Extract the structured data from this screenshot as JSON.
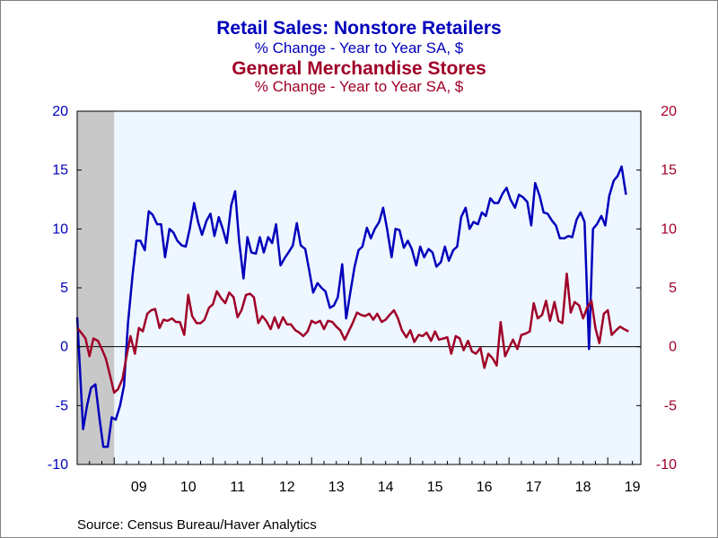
{
  "colors": {
    "series1": "#0000BB",
    "series2": "#A00028",
    "background": "#EEF6FF",
    "recession": "#C8C8C8",
    "left_axis_text": "#0000BB",
    "right_axis_text": "#A00028"
  },
  "header": {
    "series1_title": "Retail Sales: Nonstore Retailers",
    "series1_subtitle": "% Change - Year to Year    SA, $",
    "series2_title": "General Merchandise Stores",
    "series2_subtitle": "% Change - Year to Year    SA, $"
  },
  "footer": {
    "source": "Source:  Census Bureau/Haver Analytics"
  },
  "chart_data": {
    "type": "line",
    "x_unit": "year (decimal)",
    "xlim": [
      2008.25,
      2019.67
    ],
    "x_ticks": [
      {
        "label": "09",
        "x": 2009.5
      },
      {
        "label": "10",
        "x": 2010.5
      },
      {
        "label": "11",
        "x": 2011.5
      },
      {
        "label": "12",
        "x": 2012.5
      },
      {
        "label": "13",
        "x": 2013.5
      },
      {
        "label": "14",
        "x": 2014.5
      },
      {
        "label": "15",
        "x": 2015.5
      },
      {
        "label": "16",
        "x": 2016.5
      },
      {
        "label": "17",
        "x": 2017.5
      },
      {
        "label": "18",
        "x": 2018.5
      },
      {
        "label": "19",
        "x": 2019.5
      }
    ],
    "ylim_left": [
      -10,
      20
    ],
    "ylim_right": [
      -10,
      20
    ],
    "y_ticks_left": [
      -10,
      -5,
      0,
      5,
      10,
      15,
      20
    ],
    "y_ticks_right": [
      -10,
      -5,
      0,
      5,
      10,
      15,
      20
    ],
    "recession": {
      "start": 2008.25,
      "end": 2009.0
    },
    "zero_line": 0,
    "series": [
      {
        "name": "Retail Sales: Nonstore Retailers",
        "axis": "left",
        "points": [
          [
            2008.25,
            2.5
          ],
          [
            2008.37,
            -7.0
          ],
          [
            2008.45,
            -5.0
          ],
          [
            2008.53,
            -3.5
          ],
          [
            2008.62,
            -3.2
          ],
          [
            2008.7,
            -6.0
          ],
          [
            2008.78,
            -8.5
          ],
          [
            2008.87,
            -8.5
          ],
          [
            2008.95,
            -6.0
          ],
          [
            2009.03,
            -6.2
          ],
          [
            2009.12,
            -5.0
          ],
          [
            2009.2,
            -3.3
          ],
          [
            2009.28,
            2.0
          ],
          [
            2009.37,
            6.0
          ],
          [
            2009.45,
            9.0
          ],
          [
            2009.53,
            9.0
          ],
          [
            2009.62,
            8.2
          ],
          [
            2009.7,
            11.5
          ],
          [
            2009.78,
            11.2
          ],
          [
            2009.87,
            10.4
          ],
          [
            2009.95,
            10.4
          ],
          [
            2010.03,
            7.6
          ],
          [
            2010.12,
            10.0
          ],
          [
            2010.2,
            9.7
          ],
          [
            2010.28,
            9.0
          ],
          [
            2010.37,
            8.6
          ],
          [
            2010.45,
            8.5
          ],
          [
            2010.53,
            10.0
          ],
          [
            2010.62,
            12.2
          ],
          [
            2010.7,
            10.6
          ],
          [
            2010.78,
            9.5
          ],
          [
            2010.87,
            10.7
          ],
          [
            2010.95,
            11.3
          ],
          [
            2011.03,
            9.4
          ],
          [
            2011.12,
            11.0
          ],
          [
            2011.2,
            10.0
          ],
          [
            2011.28,
            8.8
          ],
          [
            2011.37,
            12.0
          ],
          [
            2011.45,
            13.2
          ],
          [
            2011.53,
            9.0
          ],
          [
            2011.62,
            5.8
          ],
          [
            2011.7,
            9.3
          ],
          [
            2011.78,
            8.0
          ],
          [
            2011.87,
            7.9
          ],
          [
            2011.95,
            9.3
          ],
          [
            2012.03,
            8.0
          ],
          [
            2012.12,
            9.3
          ],
          [
            2012.2,
            8.8
          ],
          [
            2012.28,
            10.4
          ],
          [
            2012.37,
            6.9
          ],
          [
            2012.45,
            7.5
          ],
          [
            2012.53,
            8.0
          ],
          [
            2012.62,
            8.6
          ],
          [
            2012.7,
            10.5
          ],
          [
            2012.78,
            8.6
          ],
          [
            2012.87,
            8.3
          ],
          [
            2012.95,
            6.5
          ],
          [
            2013.03,
            4.6
          ],
          [
            2013.12,
            5.4
          ],
          [
            2013.2,
            5.0
          ],
          [
            2013.28,
            4.7
          ],
          [
            2013.37,
            3.3
          ],
          [
            2013.45,
            3.5
          ],
          [
            2013.53,
            4.2
          ],
          [
            2013.62,
            7.0
          ],
          [
            2013.7,
            2.4
          ],
          [
            2013.78,
            4.5
          ],
          [
            2013.87,
            6.8
          ],
          [
            2013.95,
            8.2
          ],
          [
            2014.03,
            8.5
          ],
          [
            2014.12,
            10.1
          ],
          [
            2014.2,
            9.2
          ],
          [
            2014.28,
            10.0
          ],
          [
            2014.37,
            10.6
          ],
          [
            2014.45,
            11.8
          ],
          [
            2014.53,
            10.0
          ],
          [
            2014.62,
            7.6
          ],
          [
            2014.7,
            10.0
          ],
          [
            2014.78,
            9.9
          ],
          [
            2014.87,
            8.4
          ],
          [
            2014.95,
            9.0
          ],
          [
            2015.03,
            8.3
          ],
          [
            2015.12,
            6.9
          ],
          [
            2015.2,
            8.5
          ],
          [
            2015.28,
            7.6
          ],
          [
            2015.37,
            8.3
          ],
          [
            2015.45,
            8.0
          ],
          [
            2015.53,
            6.8
          ],
          [
            2015.62,
            7.2
          ],
          [
            2015.7,
            8.5
          ],
          [
            2015.78,
            7.3
          ],
          [
            2015.87,
            8.2
          ],
          [
            2015.95,
            8.5
          ],
          [
            2016.03,
            11.0
          ],
          [
            2016.12,
            11.8
          ],
          [
            2016.2,
            10.0
          ],
          [
            2016.28,
            10.6
          ],
          [
            2016.37,
            10.4
          ],
          [
            2016.45,
            11.4
          ],
          [
            2016.53,
            11.1
          ],
          [
            2016.62,
            12.6
          ],
          [
            2016.7,
            12.2
          ],
          [
            2016.78,
            12.2
          ],
          [
            2016.87,
            13.0
          ],
          [
            2016.95,
            13.5
          ],
          [
            2017.03,
            12.5
          ],
          [
            2017.12,
            11.8
          ],
          [
            2017.2,
            12.9
          ],
          [
            2017.28,
            12.7
          ],
          [
            2017.37,
            12.3
          ],
          [
            2017.45,
            10.3
          ],
          [
            2017.53,
            13.9
          ],
          [
            2017.62,
            12.8
          ],
          [
            2017.7,
            11.4
          ],
          [
            2017.78,
            11.3
          ],
          [
            2017.87,
            10.7
          ],
          [
            2017.95,
            10.3
          ],
          [
            2018.03,
            9.2
          ],
          [
            2018.12,
            9.2
          ],
          [
            2018.2,
            9.4
          ],
          [
            2018.28,
            9.3
          ],
          [
            2018.37,
            10.8
          ],
          [
            2018.45,
            11.4
          ],
          [
            2018.53,
            10.6
          ],
          [
            2018.62,
            -0.2
          ],
          [
            2018.7,
            10.0
          ],
          [
            2018.78,
            10.4
          ],
          [
            2018.87,
            11.1
          ],
          [
            2018.95,
            10.3
          ],
          [
            2019.03,
            12.8
          ],
          [
            2019.12,
            14.1
          ],
          [
            2019.2,
            14.5
          ],
          [
            2019.28,
            15.3
          ],
          [
            2019.37,
            12.9
          ]
        ]
      },
      {
        "name": "General Merchandise Stores",
        "axis": "right",
        "points": [
          [
            2008.25,
            1.6
          ],
          [
            2008.33,
            1.2
          ],
          [
            2008.42,
            0.7
          ],
          [
            2008.5,
            -0.8
          ],
          [
            2008.58,
            0.7
          ],
          [
            2008.67,
            0.5
          ],
          [
            2008.75,
            -0.2
          ],
          [
            2008.83,
            -1.0
          ],
          [
            2008.92,
            -2.5
          ],
          [
            2009.0,
            -3.9
          ],
          [
            2009.08,
            -3.6
          ],
          [
            2009.17,
            -2.7
          ],
          [
            2009.25,
            -0.8
          ],
          [
            2009.33,
            0.9
          ],
          [
            2009.42,
            -0.6
          ],
          [
            2009.5,
            1.6
          ],
          [
            2009.58,
            1.3
          ],
          [
            2009.67,
            2.8
          ],
          [
            2009.75,
            3.1
          ],
          [
            2009.83,
            3.2
          ],
          [
            2009.92,
            1.6
          ],
          [
            2010.0,
            2.3
          ],
          [
            2010.08,
            2.2
          ],
          [
            2010.17,
            2.4
          ],
          [
            2010.25,
            2.1
          ],
          [
            2010.33,
            2.1
          ],
          [
            2010.42,
            1.0
          ],
          [
            2010.5,
            4.4
          ],
          [
            2010.58,
            2.6
          ],
          [
            2010.67,
            2.0
          ],
          [
            2010.75,
            2.0
          ],
          [
            2010.83,
            2.3
          ],
          [
            2010.92,
            3.3
          ],
          [
            2011.0,
            3.6
          ],
          [
            2011.08,
            4.7
          ],
          [
            2011.17,
            4.1
          ],
          [
            2011.25,
            3.7
          ],
          [
            2011.33,
            4.6
          ],
          [
            2011.42,
            4.2
          ],
          [
            2011.5,
            2.5
          ],
          [
            2011.58,
            3.1
          ],
          [
            2011.67,
            4.4
          ],
          [
            2011.75,
            4.5
          ],
          [
            2011.83,
            4.2
          ],
          [
            2011.92,
            2.0
          ],
          [
            2012.0,
            2.6
          ],
          [
            2012.08,
            2.2
          ],
          [
            2012.17,
            1.5
          ],
          [
            2012.25,
            2.5
          ],
          [
            2012.33,
            1.6
          ],
          [
            2012.42,
            2.5
          ],
          [
            2012.5,
            1.9
          ],
          [
            2012.58,
            1.9
          ],
          [
            2012.67,
            1.4
          ],
          [
            2012.75,
            1.2
          ],
          [
            2012.83,
            0.9
          ],
          [
            2012.92,
            1.3
          ],
          [
            2013.0,
            2.2
          ],
          [
            2013.08,
            2.0
          ],
          [
            2013.17,
            2.2
          ],
          [
            2013.25,
            1.5
          ],
          [
            2013.33,
            2.2
          ],
          [
            2013.42,
            2.1
          ],
          [
            2013.5,
            1.7
          ],
          [
            2013.58,
            1.4
          ],
          [
            2013.67,
            0.6
          ],
          [
            2013.75,
            1.3
          ],
          [
            2013.83,
            2.0
          ],
          [
            2013.92,
            2.9
          ],
          [
            2014.0,
            2.7
          ],
          [
            2014.08,
            2.6
          ],
          [
            2014.17,
            2.8
          ],
          [
            2014.25,
            2.3
          ],
          [
            2014.33,
            2.8
          ],
          [
            2014.42,
            2.1
          ],
          [
            2014.5,
            2.3
          ],
          [
            2014.58,
            2.7
          ],
          [
            2014.67,
            3.1
          ],
          [
            2014.75,
            2.4
          ],
          [
            2014.83,
            1.4
          ],
          [
            2014.92,
            0.8
          ],
          [
            2015.0,
            1.4
          ],
          [
            2015.08,
            0.4
          ],
          [
            2015.17,
            1.0
          ],
          [
            2015.25,
            0.9
          ],
          [
            2015.33,
            1.2
          ],
          [
            2015.42,
            0.5
          ],
          [
            2015.5,
            1.3
          ],
          [
            2015.58,
            0.6
          ],
          [
            2015.67,
            0.7
          ],
          [
            2015.75,
            0.8
          ],
          [
            2015.83,
            -0.6
          ],
          [
            2015.92,
            0.9
          ],
          [
            2016.0,
            0.7
          ],
          [
            2016.08,
            -0.3
          ],
          [
            2016.17,
            0.5
          ],
          [
            2016.25,
            -0.4
          ],
          [
            2016.33,
            -0.6
          ],
          [
            2016.42,
            -0.1
          ],
          [
            2016.5,
            -1.8
          ],
          [
            2016.58,
            -0.6
          ],
          [
            2016.67,
            -1.0
          ],
          [
            2016.75,
            -1.6
          ],
          [
            2016.83,
            2.1
          ],
          [
            2016.92,
            -0.8
          ],
          [
            2017.0,
            -0.1
          ],
          [
            2017.08,
            0.6
          ],
          [
            2017.17,
            -0.2
          ],
          [
            2017.25,
            1.0
          ],
          [
            2017.33,
            1.1
          ],
          [
            2017.42,
            1.3
          ],
          [
            2017.5,
            3.7
          ],
          [
            2017.58,
            2.4
          ],
          [
            2017.67,
            2.7
          ],
          [
            2017.75,
            3.9
          ],
          [
            2017.83,
            2.2
          ],
          [
            2017.92,
            3.8
          ],
          [
            2018.0,
            2.2
          ],
          [
            2018.08,
            2.0
          ],
          [
            2018.17,
            6.2
          ],
          [
            2018.25,
            2.9
          ],
          [
            2018.33,
            3.8
          ],
          [
            2018.42,
            3.5
          ],
          [
            2018.5,
            2.4
          ],
          [
            2018.58,
            3.3
          ],
          [
            2018.67,
            3.9
          ],
          [
            2018.75,
            1.6
          ],
          [
            2018.83,
            0.3
          ],
          [
            2018.92,
            2.8
          ],
          [
            2019.0,
            3.1
          ],
          [
            2019.08,
            1.0
          ],
          [
            2019.17,
            1.4
          ],
          [
            2019.25,
            1.7
          ],
          [
            2019.33,
            1.5
          ],
          [
            2019.42,
            1.3
          ]
        ]
      }
    ]
  }
}
